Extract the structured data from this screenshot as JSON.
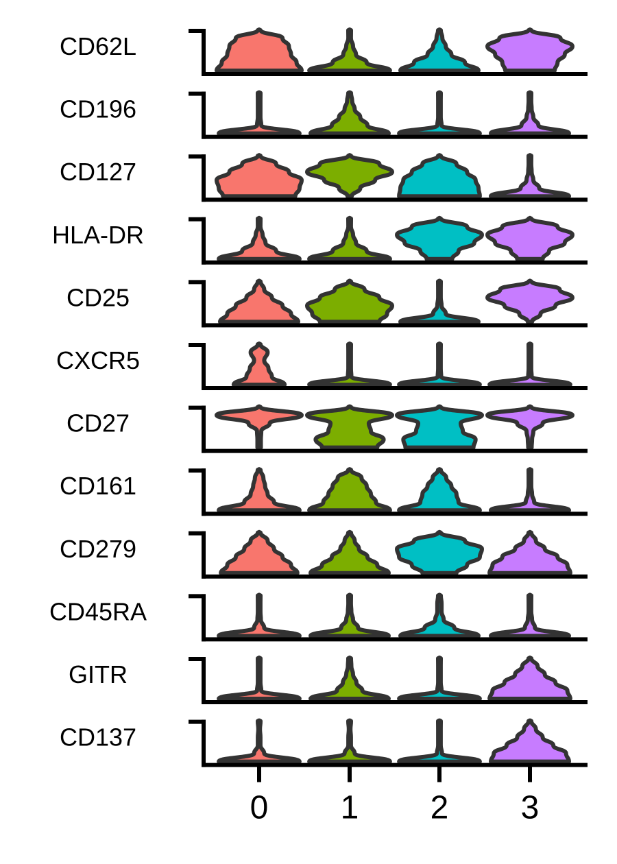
{
  "chart_data": {
    "type": "stacked-violin",
    "title": "",
    "xlabel": "",
    "ylabel": "",
    "categories": [
      "0",
      "1",
      "2",
      "3"
    ],
    "colors": {
      "0": "#F8766D",
      "1": "#7CAE00",
      "2": "#00BFC4",
      "3": "#C77CFF",
      "outline": "#333333",
      "axis": "#000000"
    },
    "grid": false,
    "legend": "none",
    "rows": [
      {
        "marker": "CD62L",
        "violins": [
          {
            "w": [
              1.0,
              0.88,
              0.75,
              0.7,
              0.55,
              0.15
            ]
          },
          {
            "w": [
              0.95,
              0.4,
              0.15,
              0.08,
              0.03,
              0.02
            ]
          },
          {
            "w": [
              0.92,
              0.6,
              0.28,
              0.15,
              0.07,
              0.03
            ]
          },
          {
            "w": [
              0.58,
              0.65,
              0.82,
              1.0,
              0.72,
              0.18
            ]
          }
        ]
      },
      {
        "marker": "CD196",
        "violins": [
          {
            "w": [
              0.95,
              0.05,
              0.03,
              0.03,
              0.03,
              0.03
            ]
          },
          {
            "w": [
              0.92,
              0.42,
              0.25,
              0.12,
              0.06,
              0.03
            ]
          },
          {
            "w": [
              0.95,
              0.05,
              0.03,
              0.03,
              0.03,
              0.02
            ]
          },
          {
            "w": [
              0.92,
              0.2,
              0.08,
              0.04,
              0.03,
              0.02
            ]
          }
        ]
      },
      {
        "marker": "CD127",
        "violins": [
          {
            "w": [
              0.85,
              0.95,
              1.0,
              0.7,
              0.4,
              0.1
            ]
          },
          {
            "w": [
              0.05,
              0.25,
              0.6,
              1.0,
              0.7,
              0.18
            ]
          },
          {
            "w": [
              0.95,
              0.92,
              0.85,
              0.65,
              0.4,
              0.1
            ]
          },
          {
            "w": [
              0.92,
              0.22,
              0.08,
              0.04,
              0.03,
              0.02
            ]
          }
        ]
      },
      {
        "marker": "HLA-DR",
        "violins": [
          {
            "w": [
              0.95,
              0.4,
              0.15,
              0.08,
              0.03,
              0.02
            ]
          },
          {
            "w": [
              0.95,
              0.4,
              0.15,
              0.08,
              0.03,
              0.02
            ]
          },
          {
            "w": [
              0.3,
              0.45,
              0.82,
              1.0,
              0.65,
              0.15
            ]
          },
          {
            "w": [
              0.3,
              0.45,
              0.82,
              1.0,
              0.65,
              0.15
            ]
          }
        ]
      },
      {
        "marker": "CD25",
        "violins": [
          {
            "w": [
              0.92,
              0.75,
              0.55,
              0.3,
              0.12,
              0.04
            ]
          },
          {
            "w": [
              0.7,
              0.88,
              1.0,
              0.7,
              0.35,
              0.08
            ]
          },
          {
            "w": [
              0.92,
              0.15,
              0.05,
              0.03,
              0.03,
              0.02
            ]
          },
          {
            "w": [
              0.05,
              0.25,
              0.6,
              1.0,
              0.7,
              0.18
            ]
          }
        ]
      },
      {
        "marker": "CXCR5",
        "violins": [
          {
            "w": [
              0.6,
              0.3,
              0.22,
              0.12,
              0.2,
              0.12
            ]
          },
          {
            "w": [
              0.95,
              0.04,
              0.03,
              0.03,
              0.03,
              0.03
            ]
          },
          {
            "w": [
              0.95,
              0.04,
              0.03,
              0.03,
              0.03,
              0.03
            ]
          },
          {
            "w": [
              0.95,
              0.04,
              0.03,
              0.03,
              0.03,
              0.03
            ]
          }
        ]
      },
      {
        "marker": "CD27",
        "violins": [
          {
            "w": [
              0.04,
              0.04,
              0.05,
              0.25,
              1.0,
              0.2
            ]
          },
          {
            "w": [
              0.65,
              0.8,
              0.5,
              0.45,
              1.0,
              0.3
            ]
          },
          {
            "w": [
              0.8,
              0.85,
              0.55,
              0.5,
              1.0,
              0.3
            ]
          },
          {
            "w": [
              0.04,
              0.05,
              0.08,
              0.3,
              1.0,
              0.2
            ]
          }
        ]
      },
      {
        "marker": "CD161",
        "violins": [
          {
            "w": [
              0.95,
              0.35,
              0.2,
              0.14,
              0.1,
              0.04
            ]
          },
          {
            "w": [
              0.95,
              0.62,
              0.5,
              0.4,
              0.28,
              0.08
            ]
          },
          {
            "w": [
              0.95,
              0.45,
              0.4,
              0.28,
              0.16,
              0.05
            ]
          },
          {
            "w": [
              0.92,
              0.1,
              0.05,
              0.03,
              0.03,
              0.02
            ]
          }
        ]
      },
      {
        "marker": "CD279",
        "violins": [
          {
            "w": [
              0.9,
              0.75,
              0.55,
              0.35,
              0.2,
              0.08
            ]
          },
          {
            "w": [
              0.92,
              0.65,
              0.42,
              0.22,
              0.12,
              0.05
            ]
          },
          {
            "w": [
              0.4,
              0.65,
              0.95,
              1.0,
              0.6,
              0.12
            ]
          },
          {
            "w": [
              0.95,
              0.88,
              0.65,
              0.35,
              0.14,
              0.04
            ]
          }
        ]
      },
      {
        "marker": "CD45RA",
        "violins": [
          {
            "w": [
              0.95,
              0.12,
              0.04,
              0.03,
              0.03,
              0.02
            ]
          },
          {
            "w": [
              0.92,
              0.2,
              0.08,
              0.04,
              0.03,
              0.02
            ]
          },
          {
            "w": [
              0.92,
              0.35,
              0.1,
              0.05,
              0.05,
              0.04
            ]
          },
          {
            "w": [
              0.92,
              0.12,
              0.05,
              0.03,
              0.03,
              0.02
            ]
          }
        ]
      },
      {
        "marker": "GITR",
        "violins": [
          {
            "w": [
              0.95,
              0.05,
              0.03,
              0.03,
              0.03,
              0.02
            ]
          },
          {
            "w": [
              0.92,
              0.3,
              0.16,
              0.08,
              0.04,
              0.02
            ]
          },
          {
            "w": [
              0.95,
              0.05,
              0.03,
              0.03,
              0.03,
              0.02
            ]
          },
          {
            "w": [
              0.95,
              0.88,
              0.6,
              0.35,
              0.18,
              0.05
            ]
          }
        ]
      },
      {
        "marker": "CD137",
        "violins": [
          {
            "w": [
              0.95,
              0.12,
              0.03,
              0.03,
              0.02,
              0.02
            ]
          },
          {
            "w": [
              0.95,
              0.12,
              0.03,
              0.03,
              0.02,
              0.02
            ]
          },
          {
            "w": [
              0.95,
              0.06,
              0.03,
              0.03,
              0.03,
              0.02
            ]
          },
          {
            "w": [
              0.92,
              0.85,
              0.55,
              0.3,
              0.14,
              0.04
            ]
          }
        ]
      }
    ]
  }
}
